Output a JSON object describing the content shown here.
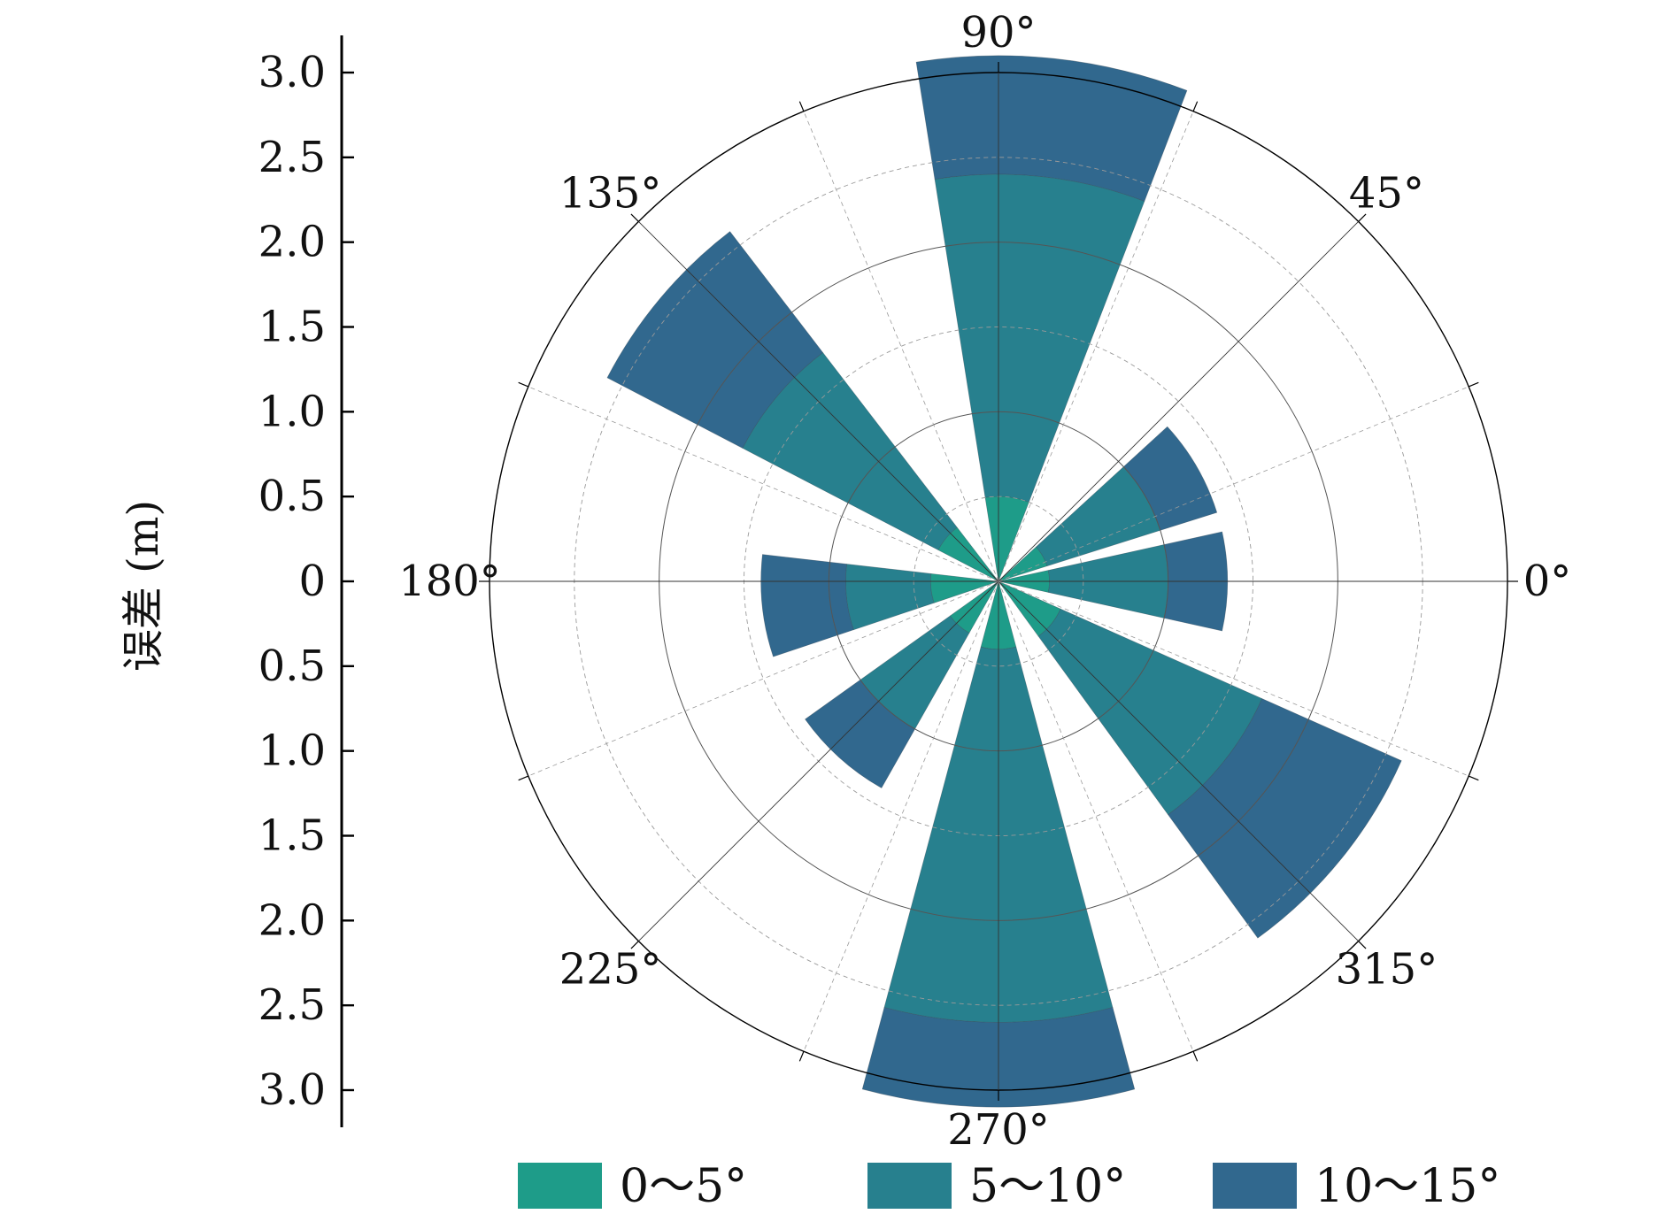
{
  "chart_data": {
    "type": "polar-bar",
    "title": "",
    "ylabel": "误差 (m)",
    "rlim": [
      0,
      3.0
    ],
    "grid": true,
    "legend_position": "bottom",
    "angle_labels": [
      {
        "angle": 0,
        "text": "0°"
      },
      {
        "angle": 45,
        "text": "45°"
      },
      {
        "angle": 90,
        "text": "90°"
      },
      {
        "angle": 135,
        "text": "135°"
      },
      {
        "angle": 180,
        "text": "180°"
      },
      {
        "angle": 225,
        "text": "225°"
      },
      {
        "angle": 270,
        "text": "270°"
      },
      {
        "angle": 315,
        "text": "315°"
      }
    ],
    "y_ticks_upper": [
      "3.0",
      "2.5",
      "2.0",
      "1.5",
      "1.0",
      "0.5",
      "0"
    ],
    "y_ticks_lower": [
      "0.5",
      "1.0",
      "1.5",
      "2.0",
      "2.5",
      "3.0"
    ],
    "y_tick_values_upper": [
      3.0,
      2.5,
      2.0,
      1.5,
      1.0,
      0.5,
      0
    ],
    "y_tick_values_lower": [
      0.5,
      1.0,
      1.5,
      2.0,
      2.5,
      3.0
    ],
    "series": [
      {
        "name": "0～5°",
        "color": "#1e9c89"
      },
      {
        "name": "5～10°",
        "color": "#27808e"
      },
      {
        "name": "10～15°",
        "color": "#31688e"
      }
    ],
    "sectors": [
      {
        "center": 0,
        "width": 25,
        "values": [
          0.3,
          1.0,
          1.35
        ]
      },
      {
        "center": 30,
        "width": 25,
        "values": [
          0.3,
          1.0,
          1.35
        ]
      },
      {
        "center": 84,
        "width": 30,
        "values": [
          0.5,
          2.4,
          3.1
        ]
      },
      {
        "center": 140,
        "width": 25,
        "values": [
          0.4,
          1.7,
          2.6
        ]
      },
      {
        "center": 186,
        "width": 25,
        "values": [
          0.4,
          0.9,
          1.4
        ]
      },
      {
        "center": 228,
        "width": 25,
        "values": [
          0.35,
          1.0,
          1.4
        ]
      },
      {
        "center": 270,
        "width": 30,
        "values": [
          0.4,
          2.6,
          3.1
        ]
      },
      {
        "center": 321,
        "width": 30,
        "values": [
          0.4,
          1.7,
          2.6
        ]
      }
    ]
  }
}
